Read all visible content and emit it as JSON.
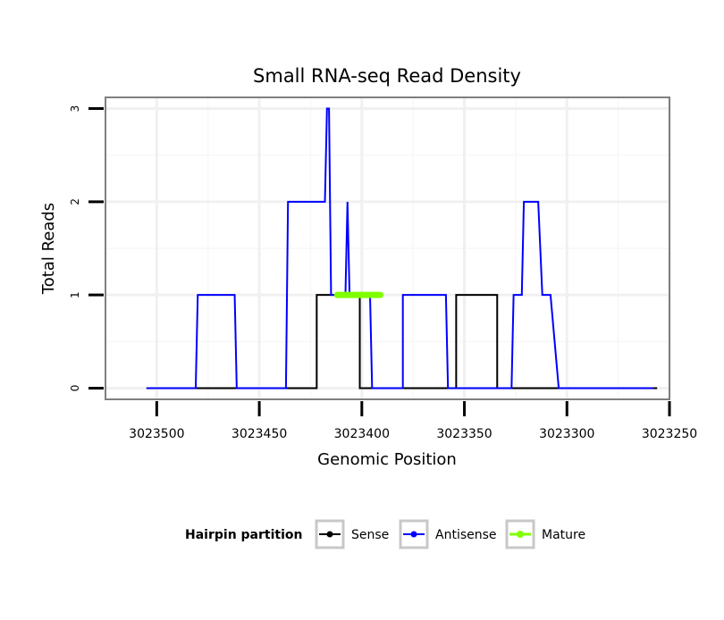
{
  "chart_data": {
    "type": "line",
    "title": "Small RNA-seq Read Density",
    "xlabel": "Genomic Position",
    "ylabel": "Total Reads",
    "x_reversed": true,
    "xlim": [
      3023525,
      3023250
    ],
    "ylim": [
      -0.12,
      3.12
    ],
    "x_ticks": [
      3023500,
      3023450,
      3023400,
      3023350,
      3023300,
      3023250
    ],
    "x_tick_labels": [
      "3023500",
      "3023450",
      "3023400",
      "3023350",
      "3023300",
      "3023250"
    ],
    "y_ticks": [
      0,
      1,
      2,
      3
    ],
    "y_tick_labels": [
      "0",
      "1",
      "2",
      "3"
    ],
    "grid": true,
    "legend": {
      "title": "Hairpin partition",
      "position": "bottom",
      "entries": [
        "Sense",
        "Antisense",
        "Mature"
      ]
    },
    "series": [
      {
        "name": "Sense",
        "color": "#000000",
        "x": [
          3023505,
          3023422,
          3023422,
          3023412,
          3023412,
          3023401,
          3023401,
          3023354,
          3023354,
          3023334,
          3023334,
          3023330,
          3023330,
          3023256
        ],
        "y": [
          0,
          0,
          1,
          1,
          1,
          1,
          0,
          0,
          1,
          1,
          0,
          0,
          0,
          0
        ]
      },
      {
        "name": "Antisense",
        "color": "#0000ff",
        "x": [
          3023505,
          3023481,
          3023480,
          3023462,
          3023461,
          3023437,
          3023436,
          3023419,
          3023418,
          3023417,
          3023416,
          3023415,
          3023414,
          3023408,
          3023407,
          3023406,
          3023405,
          3023396,
          3023395,
          3023380,
          3023380,
          3023359,
          3023358,
          3023338,
          3023337,
          3023333,
          3023333,
          3023327,
          3023326,
          3023322,
          3023321,
          3023314,
          3023312,
          3023309,
          3023308,
          3023304,
          3023303,
          3023258
        ],
        "y": [
          0,
          0,
          1,
          1,
          0,
          0,
          2,
          2,
          2,
          3,
          3,
          1,
          1,
          1,
          2,
          1,
          1,
          1,
          0,
          0,
          1,
          1,
          0,
          0,
          0,
          0,
          0,
          0,
          1,
          1,
          2,
          2,
          1,
          1,
          1,
          0,
          0,
          0
        ]
      },
      {
        "name": "Mature",
        "color": "#7fff00",
        "x": [
          3023412,
          3023391
        ],
        "y": [
          1,
          1
        ]
      }
    ]
  }
}
